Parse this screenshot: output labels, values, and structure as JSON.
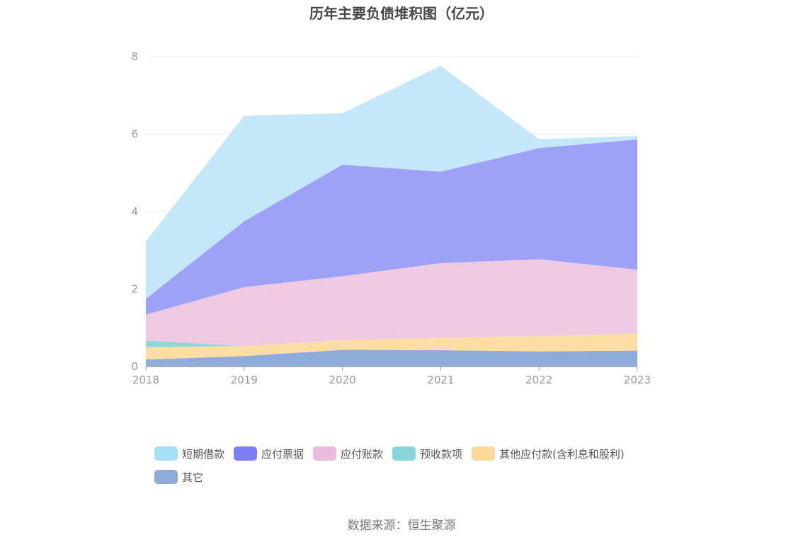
{
  "chart_data": {
    "type": "area",
    "stacked": true,
    "title": "历年主要负债堆积图（亿元）",
    "xlabel": "",
    "ylabel": "",
    "x": [
      "2018",
      "2019",
      "2020",
      "2021",
      "2022",
      "2023"
    ],
    "ylim": [
      0,
      8
    ],
    "yticks": [
      "0",
      "2",
      "4",
      "6",
      "8"
    ],
    "grid": true,
    "legend_position": "bottom",
    "series": [
      {
        "name": "其它",
        "color": "#8eabd9",
        "values": [
          0.18,
          0.27,
          0.43,
          0.42,
          0.39,
          0.41
        ]
      },
      {
        "name": "其他应付款(含利息和股利)",
        "color": "#fcdea5",
        "values": [
          0.32,
          0.26,
          0.25,
          0.32,
          0.4,
          0.44
        ]
      },
      {
        "name": "预收款项",
        "color": "#8dd7dc",
        "values": [
          0.17,
          0.0,
          0.0,
          0.0,
          0.0,
          0.0
        ]
      },
      {
        "name": "应付账款",
        "color": "#eec9e2",
        "values": [
          0.67,
          1.52,
          1.65,
          1.93,
          1.98,
          1.65
        ]
      },
      {
        "name": "应付票据",
        "color": "#9da1f8",
        "values": [
          0.41,
          1.7,
          2.88,
          2.36,
          2.87,
          3.36
        ]
      },
      {
        "name": "短期借款",
        "color": "#c4e8fa",
        "values": [
          1.48,
          2.72,
          1.33,
          2.73,
          0.23,
          0.09
        ]
      }
    ]
  },
  "legend": {
    "items": [
      {
        "label": "短期借款",
        "color": "#a8dff8"
      },
      {
        "label": "应付票据",
        "color": "#7a7ff5"
      },
      {
        "label": "应付账款",
        "color": "#ebbbdb"
      },
      {
        "label": "预收款项",
        "color": "#86d6da"
      },
      {
        "label": "其他应付款(含利息和股利)",
        "color": "#fcd99a"
      },
      {
        "label": "其它",
        "color": "#8eabd9"
      }
    ]
  },
  "source": "数据来源：恒生聚源"
}
